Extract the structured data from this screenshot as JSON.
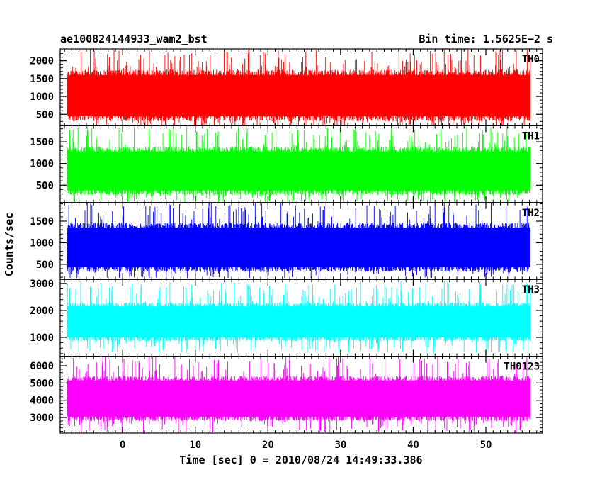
{
  "header": {
    "left": "ae100824144933_wam2_bst",
    "right": "Bin time: 1.5625E−2 s"
  },
  "chart_data": {
    "type": "line",
    "xlabel": "Time [sec] 0 = 2010/08/24 14:49:33.386",
    "ylabel": "Counts/sec",
    "xlim": [
      -8.6,
      57.8
    ],
    "data_range": [
      -7.6,
      56.1
    ],
    "bin_time": 0.015625,
    "xticks": [
      0,
      10,
      20,
      30,
      40,
      50
    ],
    "grid": false,
    "panels": [
      {
        "name": "TH0",
        "color": "#ff0000",
        "ylim": [
          180,
          2330
        ],
        "yticks": [
          500,
          1000,
          1500,
          2000
        ],
        "mean": 1050,
        "band_low": 450,
        "band_high": 1600,
        "peak_min": 80,
        "peak_max": 2330
      },
      {
        "name": "TH1",
        "color": "#00ff00",
        "ylim": [
          100,
          1870
        ],
        "yticks": [
          500,
          1000,
          1500
        ],
        "mean": 830,
        "band_low": 380,
        "band_high": 1280,
        "peak_min": 90,
        "peak_max": 1870
      },
      {
        "name": "TH2",
        "color": "#0000ff",
        "ylim": [
          150,
          1930
        ],
        "yticks": [
          500,
          1000,
          1500
        ],
        "mean": 900,
        "band_low": 440,
        "band_high": 1350,
        "peak_min": 180,
        "peak_max": 1930
      },
      {
        "name": "TH3",
        "color": "#00ffff",
        "ylim": [
          300,
          3150
        ],
        "yticks": [
          1000,
          2000,
          3000
        ],
        "mean": 1580,
        "band_low": 1000,
        "band_high": 2150,
        "peak_min": 420,
        "peak_max": 3100
      },
      {
        "name": "TH0123",
        "color": "#ff00ff",
        "ylim": [
          2100,
          6550
        ],
        "yticks": [
          3000,
          4000,
          5000,
          6000
        ],
        "mean": 4100,
        "band_low": 3050,
        "band_high": 5150,
        "peak_min": 2100,
        "peak_max": 6550
      }
    ]
  }
}
